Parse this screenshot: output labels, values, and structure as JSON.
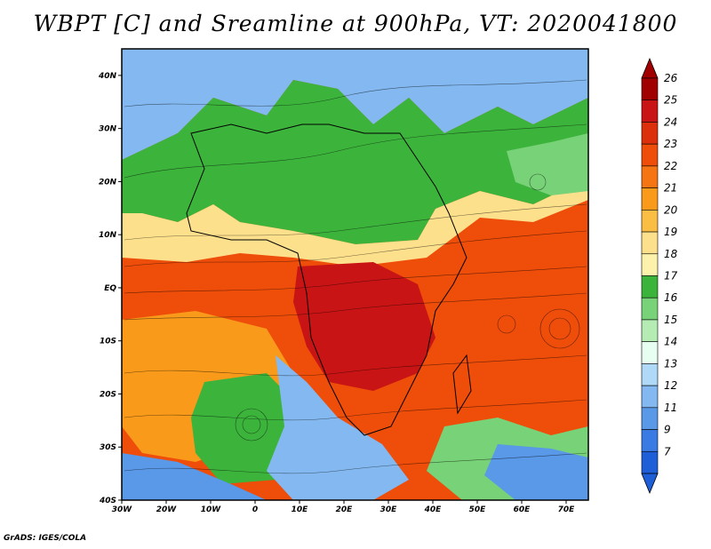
{
  "title": "WBPT [C] and Sreamline at 900hPa, VT: 2020041800",
  "credit": "GrADS: IGES/COLA",
  "map": {
    "lat_labels": [
      "40N",
      "30N",
      "20N",
      "10N",
      "EQ",
      "10S",
      "20S",
      "30S",
      "40S"
    ],
    "lat_values": [
      40,
      30,
      20,
      10,
      0,
      -10,
      -20,
      -30,
      -40
    ],
    "lon_labels": [
      "30W",
      "20W",
      "10W",
      "0",
      "10E",
      "20E",
      "30E",
      "40E",
      "50E",
      "60E",
      "70E"
    ],
    "lon_values": [
      -30,
      -20,
      -10,
      0,
      10,
      20,
      30,
      40,
      50,
      60,
      70
    ],
    "lon_range": [
      -30,
      75
    ],
    "lat_range": [
      -40,
      45
    ]
  },
  "colorbar": {
    "labels": [
      "26",
      "25",
      "24",
      "23",
      "22",
      "21",
      "20",
      "19",
      "18",
      "17",
      "16",
      "15",
      "14",
      "13",
      "12",
      "11",
      "9",
      "7"
    ],
    "colors": [
      "#a00000",
      "#c81414",
      "#dc2f0c",
      "#ee4d0a",
      "#f57414",
      "#f99a1a",
      "#fbbe45",
      "#fde08c",
      "#fdf2ab",
      "#3cb43c",
      "#78d278",
      "#b4ecb4",
      "#e6fff0",
      "#b0d8f7",
      "#83b8f0",
      "#5a98e8",
      "#3a7be3",
      "#1e5fd8"
    ],
    "top_arrow_color": "#a00000",
    "bottom_arrow_color": "#1e5fd8"
  }
}
